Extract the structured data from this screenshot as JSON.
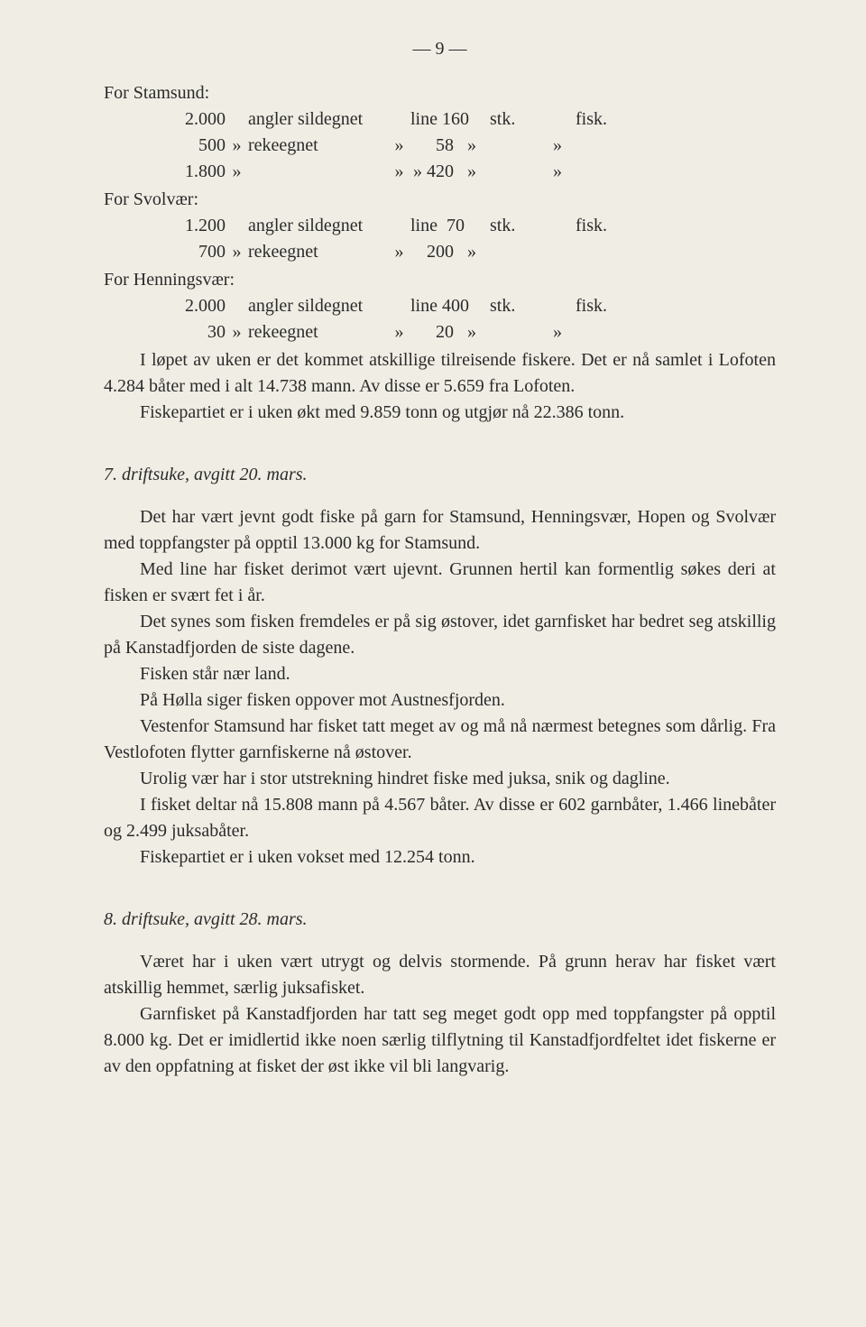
{
  "page_number": "— 9 —",
  "locations": {
    "stamsund": {
      "header": "For Stamsund:",
      "rows": [
        {
          "c1": "2.000",
          "c2": "",
          "c3": "angler sildegnet",
          "c4": "",
          "c5": "line 160",
          "c6": "",
          "c7": "stk.",
          "c8": "",
          "c9": "fisk."
        },
        {
          "c1": "500",
          "c2": "»",
          "c3": "rekeegnet",
          "c4": "»",
          "c5": "58",
          "c6": "»",
          "c7": "",
          "c8": "»",
          "c9": ""
        },
        {
          "c1": "1.800",
          "c2": "»",
          "c3": "",
          "c4": "»",
          "c5": "» 420",
          "c6": "»",
          "c7": "",
          "c8": "»",
          "c9": ""
        }
      ]
    },
    "svolvaer": {
      "header": "For Svolvær:",
      "rows": [
        {
          "c1": "1.200",
          "c2": "",
          "c3": "angler sildegnet",
          "c4": "",
          "c5": "line  70",
          "c6": "",
          "c7": "stk.",
          "c8": "",
          "c9": "fisk."
        },
        {
          "c1": "700",
          "c2": "»",
          "c3": "rekeegnet",
          "c4": "»",
          "c5": "200",
          "c6": "»",
          "c7": "",
          "c8": "",
          "c9": ""
        }
      ]
    },
    "henningsvaer": {
      "header": "For Henningsvær:",
      "rows": [
        {
          "c1": "2.000",
          "c2": "",
          "c3": "angler sildegnet",
          "c4": "",
          "c5": "line 400",
          "c6": "",
          "c7": "stk.",
          "c8": "",
          "c9": "fisk."
        },
        {
          "c1": "30",
          "c2": "»",
          "c3": "rekeegnet",
          "c4": "»",
          "c5": "20",
          "c6": "»",
          "c7": "",
          "c8": "»",
          "c9": ""
        }
      ]
    }
  },
  "block1_p1": "I løpet av uken er det kommet atskillige tilreisende fiskere. Det er nå samlet i Lofoten 4.284 båter med i alt 14.738 mann. Av disse er 5.659 fra Lofoten.",
  "block1_p2": "Fiskepartiet er i uken økt med 9.859 tonn og utgjør nå 22.386 tonn.",
  "section7_title": "7. driftsuke, avgitt 20. mars.",
  "s7_p1": "Det har vært jevnt godt fiske på garn for Stamsund, Henningsvær, Hopen og Svolvær med toppfangster på opptil 13.000 kg for Stamsund.",
  "s7_p2": "Med line har fisket derimot vært ujevnt. Grunnen hertil kan for­mentlig søkes deri at fisken er svært fet i år.",
  "s7_p3": "Det synes som fisken fremdeles er på sig østover, idet garnfisket har bedret seg atskillig på Kanstadfjorden de siste dagene.",
  "s7_p4": "Fisken står nær land.",
  "s7_p5": "På Hølla siger fisken oppover mot Austnesfjorden.",
  "s7_p6": "Vestenfor Stamsund har fisket tatt meget av og må nå nærmest betegnes som dårlig. Fra Vestlofoten flytter garnfiskerne nå østover.",
  "s7_p7": "Urolig vær har i stor utstrekning hindret fiske med juksa, snik og dagline.",
  "s7_p8": "I fisket deltar nå 15.808 mann på 4.567 båter. Av disse er 602 garnbåter, 1.466 linebåter og 2.499 juksabåter.",
  "s7_p9": "Fiskepartiet er i uken vokset med 12.254 tonn.",
  "section8_title": "8. driftsuke, avgitt 28. mars.",
  "s8_p1": "Været har i uken vært utrygt og delvis stormende. På grunn herav har fisket vært atskillig hemmet, særlig juksafisket.",
  "s8_p2": "Garnfisket på Kanstadfjorden har tatt seg meget godt opp med toppfangster på opptil 8.000 kg. Det er imidlertid ikke noen særlig til­flytning til Kanstadfjordfeltet idet fiskerne er av den oppfatning at fisket der øst ikke vil bli langvarig."
}
